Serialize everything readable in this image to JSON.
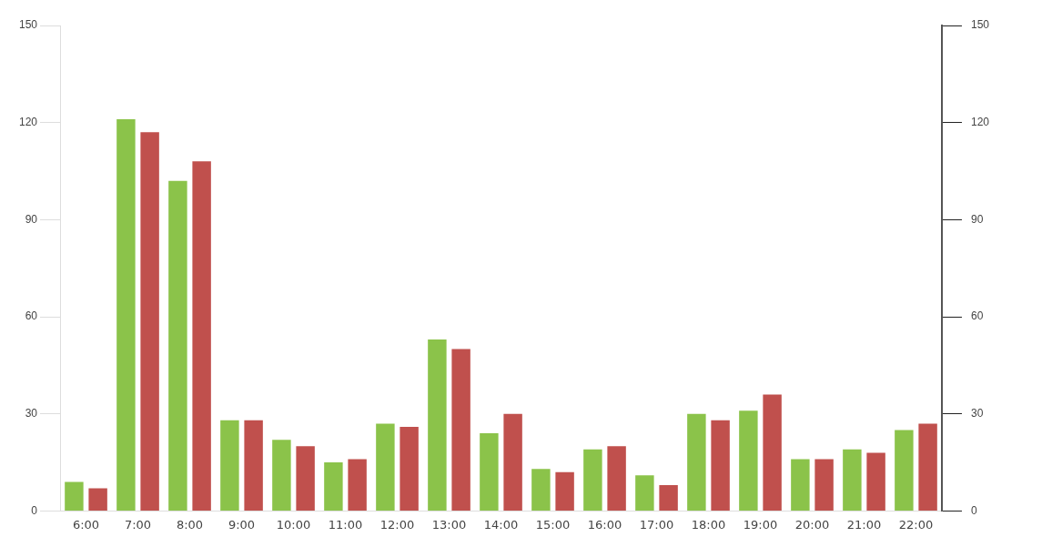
{
  "chart_data": {
    "type": "bar",
    "categories": [
      "6:00",
      "7:00",
      "8:00",
      "9:00",
      "10:00",
      "11:00",
      "12:00",
      "13:00",
      "14:00",
      "15:00",
      "16:00",
      "17:00",
      "18:00",
      "19:00",
      "20:00",
      "21:00",
      "22:00"
    ],
    "series": [
      {
        "color": "#8bc34a",
        "values": [
          9,
          121,
          102,
          28,
          22,
          15,
          27,
          53,
          24,
          13,
          19,
          11,
          30,
          31,
          16,
          19,
          25
        ]
      },
      {
        "color": "#c0504d",
        "values": [
          7,
          117,
          108,
          28,
          20,
          16,
          26,
          50,
          30,
          12,
          20,
          8,
          28,
          36,
          16,
          18,
          27
        ]
      }
    ],
    "ylim": [
      0,
      150
    ],
    "yticks": [
      0,
      30,
      60,
      90,
      120,
      150
    ],
    "y2lim": [
      0,
      150
    ],
    "y2ticks": [
      0,
      30,
      60,
      90,
      120,
      150
    ],
    "grid": false,
    "legend": false
  }
}
